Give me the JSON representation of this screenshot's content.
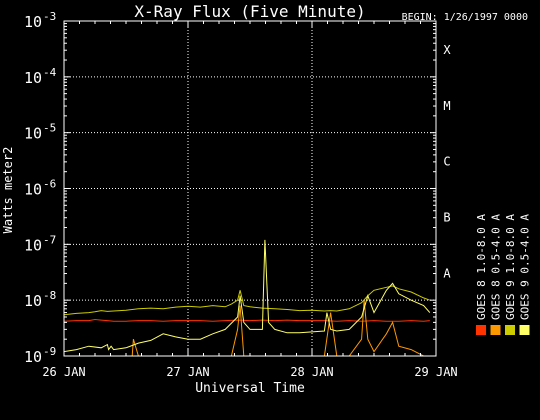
{
  "chart_data": {
    "type": "line",
    "title": "X-Ray Flux (Five Minute)",
    "begin_label": "BEGIN: 1/26/1997 0000",
    "xlabel": "Universal Time",
    "ylabel": "Watts meter2",
    "yscale": "log",
    "ylim": [
      1e-09,
      0.001
    ],
    "y_ticks": [
      {
        "base": "10",
        "exp": "-9"
      },
      {
        "base": "10",
        "exp": "-8"
      },
      {
        "base": "10",
        "exp": "-7"
      },
      {
        "base": "10",
        "exp": "-6"
      },
      {
        "base": "10",
        "exp": "-5"
      },
      {
        "base": "10",
        "exp": "-4"
      },
      {
        "base": "10",
        "exp": "-3"
      }
    ],
    "x_ticks": [
      "26 JAN",
      "27 JAN",
      "28 JAN",
      "29 JAN"
    ],
    "xlim_days": [
      0,
      3
    ],
    "x_unit": "days after 1/26/1997 0000",
    "grid": true,
    "flare_classes": [
      {
        "label": "A",
        "flux": 1e-08
      },
      {
        "label": "B",
        "flux": 1e-07
      },
      {
        "label": "C",
        "flux": 1e-06
      },
      {
        "label": "M",
        "flux": 1e-05
      },
      {
        "label": "X",
        "flux": 0.0001
      }
    ],
    "legend_placement": "right",
    "series": [
      {
        "name": "GOES 8 1.0-8.0 A",
        "color": "#ff3300",
        "x": [
          0,
          0.1,
          0.2,
          0.25,
          0.3,
          0.35,
          0.4,
          0.5,
          0.6,
          0.7,
          0.8,
          0.9,
          1.0,
          1.1,
          1.2,
          1.3,
          1.4,
          1.5,
          1.6,
          1.7,
          1.8,
          1.9,
          2.0,
          2.1,
          2.2,
          2.3,
          2.4,
          2.5,
          2.6,
          2.7,
          2.8,
          2.9,
          2.95
        ],
        "y": [
          4.2e-09,
          4.3e-09,
          4.3e-09,
          4.5e-09,
          4.4e-09,
          4.3e-09,
          4.2e-09,
          4.2e-09,
          4.3e-09,
          4.3e-09,
          4.2e-09,
          4.3e-09,
          4.3e-09,
          4.3e-09,
          4.2e-09,
          4.3e-09,
          4.4e-09,
          4.3e-09,
          4.4e-09,
          4.3e-09,
          4.4e-09,
          4.3e-09,
          4.3e-09,
          4.3e-09,
          4.2e-09,
          4.3e-09,
          4.2e-09,
          4.3e-09,
          4.2e-09,
          4.2e-09,
          4.3e-09,
          4.2e-09,
          4.3e-09
        ]
      },
      {
        "name": "GOES 8 0.5-4.0 A",
        "color": "#ff9900",
        "x": [
          0,
          0.2,
          0.4,
          0.5,
          0.55,
          0.56,
          0.6,
          0.8,
          1.0,
          1.2,
          1.35,
          1.4,
          1.42,
          1.45,
          1.6,
          1.8,
          1.9,
          2.0,
          2.1,
          2.15,
          2.2,
          2.3,
          2.4,
          2.42,
          2.45,
          2.5,
          2.6,
          2.65,
          2.7,
          2.8,
          2.9,
          2.95
        ],
        "y": [
          1e-09,
          1e-09,
          1e-09,
          1e-09,
          1e-09,
          2e-09,
          1e-09,
          1e-09,
          1e-09,
          1e-09,
          1e-09,
          3e-09,
          8e-09,
          1e-09,
          1e-09,
          1e-09,
          1e-09,
          1e-09,
          1e-09,
          6e-09,
          1e-09,
          1e-09,
          2e-09,
          1e-08,
          2e-09,
          1.2e-09,
          2.5e-09,
          4e-09,
          1.5e-09,
          1.3e-09,
          1e-09,
          1e-09
        ]
      },
      {
        "name": "GOES 9 1.0-8.0 A",
        "color": "#cccc00",
        "x": [
          0,
          0.1,
          0.2,
          0.25,
          0.3,
          0.35,
          0.4,
          0.5,
          0.6,
          0.7,
          0.8,
          0.9,
          1.0,
          1.1,
          1.2,
          1.3,
          1.35,
          1.4,
          1.42,
          1.45,
          1.5,
          1.6,
          1.7,
          1.8,
          1.9,
          2.0,
          2.1,
          2.15,
          2.2,
          2.3,
          2.4,
          2.45,
          2.5,
          2.6,
          2.65,
          2.7,
          2.8,
          2.9,
          2.95
        ],
        "y": [
          5.5e-09,
          5.8e-09,
          6e-09,
          6.2e-09,
          6.5e-09,
          6.3e-09,
          6.4e-09,
          6.6e-09,
          7e-09,
          7.2e-09,
          7e-09,
          7.5e-09,
          7.8e-09,
          7.5e-09,
          8e-09,
          7.6e-09,
          8.5e-09,
          1e-08,
          1.5e-08,
          8e-09,
          7.6e-09,
          7.2e-09,
          7e-09,
          6.8e-09,
          6.5e-09,
          6.6e-09,
          6.4e-09,
          6.5e-09,
          6.4e-09,
          7e-09,
          9e-09,
          1.2e-08,
          1.5e-08,
          1.7e-08,
          1.8e-08,
          1.6e-08,
          1.4e-08,
          1.1e-08,
          1e-08
        ]
      },
      {
        "name": "GOES 9 0.5-4.0 A",
        "color": "#ffff66",
        "x": [
          0,
          0.1,
          0.2,
          0.3,
          0.35,
          0.36,
          0.38,
          0.4,
          0.5,
          0.6,
          0.7,
          0.8,
          0.9,
          1.0,
          1.1,
          1.2,
          1.3,
          1.4,
          1.42,
          1.45,
          1.5,
          1.6,
          1.62,
          1.65,
          1.7,
          1.8,
          1.9,
          2.0,
          2.1,
          2.12,
          2.15,
          2.2,
          2.3,
          2.4,
          2.45,
          2.5,
          2.6,
          2.65,
          2.7,
          2.8,
          2.9,
          2.95
        ],
        "y": [
          1.2e-09,
          1.3e-09,
          1.5e-09,
          1.4e-09,
          1.6e-09,
          1.3e-09,
          1.5e-09,
          1.3e-09,
          1.4e-09,
          1.7e-09,
          1.9e-09,
          2.5e-09,
          2.2e-09,
          2e-09,
          2e-09,
          2.5e-09,
          3e-09,
          5e-09,
          1.2e-08,
          4e-09,
          3e-09,
          3e-09,
          1.2e-07,
          4e-09,
          3e-09,
          2.6e-09,
          2.6e-09,
          2.7e-09,
          2.8e-09,
          6e-09,
          3e-09,
          2.8e-09,
          3e-09,
          5e-09,
          1.2e-08,
          6e-09,
          1.5e-08,
          2e-08,
          1.3e-08,
          1e-08,
          8e-09,
          6e-09
        ]
      }
    ]
  }
}
